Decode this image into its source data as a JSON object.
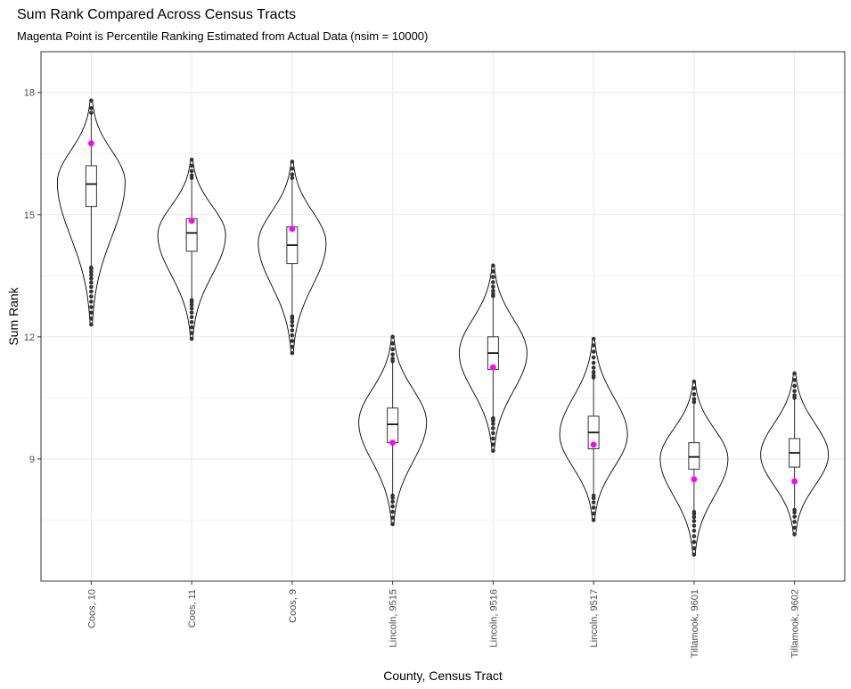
{
  "chart_data": {
    "type": "violin",
    "title": "Sum Rank Compared Across Census Tracts",
    "subtitle": "Magenta Point is Percentile Ranking Estimated from Actual Data (nsim = 10000)",
    "xlabel": "County, Census Tract",
    "ylabel": "Sum Rank",
    "ylim": [
      6.0,
      19.0
    ],
    "yticks": [
      9,
      12,
      15,
      18
    ],
    "grid": true,
    "colors": {
      "violin_outline": "#000000",
      "outlier": "#333333",
      "actual_point": "#ff00ff",
      "grid": "#ebebeb",
      "panel_border": "#333333"
    },
    "categories": [
      "Coos, 10",
      "Coos, 11",
      "Coos, 9",
      "Lincoln, 9515",
      "Lincoln, 9516",
      "Lincoln, 9517",
      "Tillamook, 9601",
      "Tillamook, 9602"
    ],
    "groups": [
      {
        "category": "Coos, 10",
        "min": 12.3,
        "max": 17.8,
        "q1": 15.2,
        "median": 15.75,
        "q3": 16.2,
        "whisker_low": 13.7,
        "whisker_high": 17.5,
        "mode": 15.8,
        "actual": 16.75
      },
      {
        "category": "Coos, 11",
        "min": 11.95,
        "max": 16.35,
        "q1": 14.1,
        "median": 14.55,
        "q3": 14.9,
        "whisker_low": 12.9,
        "whisker_high": 15.9,
        "mode": 14.5,
        "actual": 14.85
      },
      {
        "category": "Coos, 9",
        "min": 11.6,
        "max": 16.3,
        "q1": 13.8,
        "median": 14.25,
        "q3": 14.7,
        "whisker_low": 12.5,
        "whisker_high": 15.9,
        "mode": 14.3,
        "actual": 14.65
      },
      {
        "category": "Lincoln, 9515",
        "min": 7.4,
        "max": 12.0,
        "q1": 9.4,
        "median": 9.85,
        "q3": 10.25,
        "whisker_low": 8.1,
        "whisker_high": 11.4,
        "mode": 9.9,
        "actual": 9.4
      },
      {
        "category": "Lincoln, 9516",
        "min": 9.2,
        "max": 13.75,
        "q1": 11.2,
        "median": 11.6,
        "q3": 12.0,
        "whisker_low": 10.0,
        "whisker_high": 13.0,
        "mode": 11.6,
        "actual": 11.25
      },
      {
        "category": "Lincoln, 9517",
        "min": 7.5,
        "max": 11.95,
        "q1": 9.25,
        "median": 9.65,
        "q3": 10.05,
        "whisker_low": 8.1,
        "whisker_high": 11.0,
        "mode": 9.6,
        "actual": 9.35
      },
      {
        "category": "Tillamook, 9601",
        "min": 6.65,
        "max": 10.9,
        "q1": 8.75,
        "median": 9.05,
        "q3": 9.4,
        "whisker_low": 7.7,
        "whisker_high": 10.4,
        "mode": 9.0,
        "actual": 8.5
      },
      {
        "category": "Tillamook, 9602",
        "min": 7.15,
        "max": 11.1,
        "q1": 8.8,
        "median": 9.15,
        "q3": 9.5,
        "whisker_low": 7.75,
        "whisker_high": 10.5,
        "mode": 9.1,
        "actual": 8.45
      }
    ]
  }
}
